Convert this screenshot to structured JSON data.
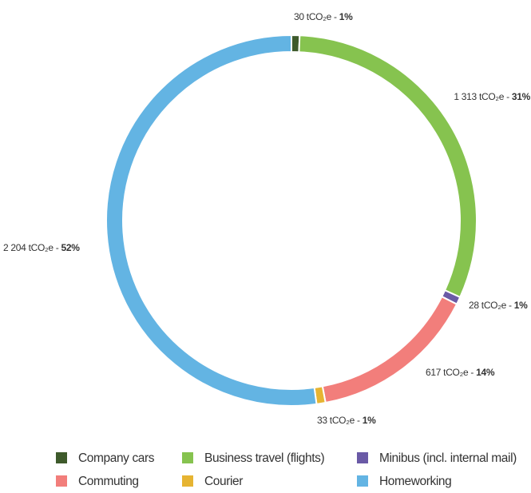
{
  "chart_data": {
    "type": "donut",
    "categories": [
      "Company cars",
      "Business travel (flights)",
      "Minibus (incl. internal mail)",
      "Commuting",
      "Courier",
      "Homeworking"
    ],
    "values": [
      30,
      1313,
      28,
      617,
      33,
      2204
    ],
    "value_labels": [
      "30 tCO₂e - 1%",
      "1 313 tCO₂e - 31%",
      "28 tCO₂e - 1%",
      "617 tCO₂e - 14%",
      "33 tCO₂e - 1%",
      "2 204 tCO₂e - 52%"
    ],
    "colors": [
      "#3e5a2b",
      "#86c34f",
      "#6a5aa6",
      "#f27e7b",
      "#e6b432",
      "#63b4e3"
    ]
  }
}
